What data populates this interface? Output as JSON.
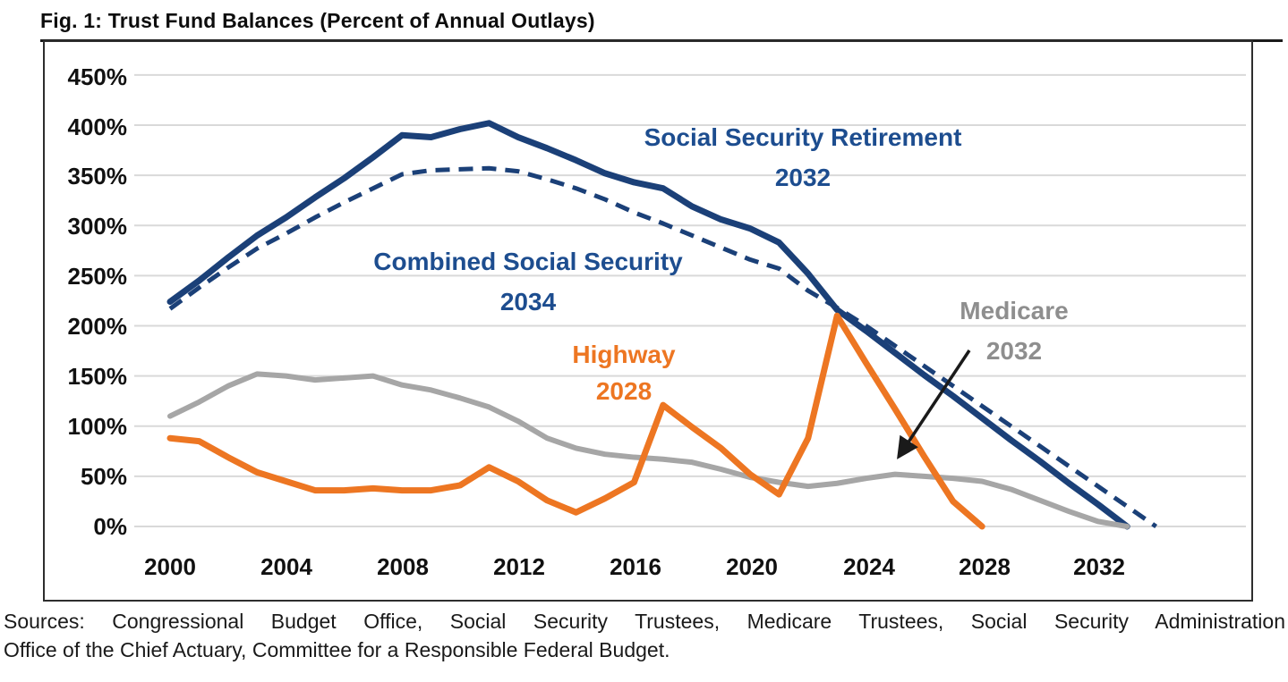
{
  "figure": {
    "title": "Fig. 1: Trust Fund Balances (Percent of Annual Outlays)",
    "sources_line1": "Sources: Congressional Budget Office, Social Security Trustees, Medicare Trustees, Social Security Administration",
    "sources_line2": "Office of the Chief Actuary, Committee for a Responsible Federal Budget."
  },
  "colors": {
    "navy": "#1b4078",
    "orange": "#ed7622",
    "gray": "#a6a6a6",
    "gridline": "#d9d9d9",
    "axis_text": "#111111",
    "arrow": "#1a1a1a"
  },
  "chart_data": {
    "type": "line",
    "title": "Trust Fund Balances (Percent of Annual Outlays)",
    "xlabel": "",
    "ylabel": "Percent of Annual Outlays",
    "ylim": [
      0,
      450
    ],
    "xlim": [
      2000,
      2034
    ],
    "grid": "horizontal",
    "legend_position": "inline-annotations",
    "y_tick_labels": [
      "450%",
      "400%",
      "350%",
      "300%",
      "250%",
      "200%",
      "150%",
      "100%",
      "50%",
      "0%"
    ],
    "y_gridline_values": [
      450,
      400,
      350,
      300,
      250,
      200,
      150,
      100,
      50,
      0
    ],
    "x_tick_labels": [
      "2000",
      "2004",
      "2008",
      "2012",
      "2016",
      "2020",
      "2024",
      "2028",
      "2032"
    ],
    "x_tick_values": [
      2000,
      2004,
      2008,
      2012,
      2016,
      2020,
      2024,
      2028,
      2032
    ],
    "series": [
      {
        "name": "Social Security Retirement",
        "insolvency_year": "2032",
        "color": "#1b4078",
        "style": "solid",
        "width": 7,
        "x": [
          2000,
          2001,
          2002,
          2003,
          2004,
          2005,
          2006,
          2007,
          2008,
          2009,
          2010,
          2011,
          2012,
          2013,
          2014,
          2015,
          2016,
          2017,
          2018,
          2019,
          2020,
          2021,
          2022,
          2023,
          2024,
          2025,
          2026,
          2027,
          2028,
          2029,
          2030,
          2031,
          2032,
          2033
        ],
        "values": [
          224,
          245,
          268,
          290,
          308,
          328,
          347,
          368,
          390,
          388,
          396,
          402,
          388,
          377,
          365,
          352,
          343,
          337,
          319,
          306,
          297,
          283,
          252,
          216,
          195,
          173,
          151,
          130,
          108,
          86,
          65,
          43,
          22,
          0
        ]
      },
      {
        "name": "Combined Social Security",
        "insolvency_year": "2034",
        "color": "#1b4078",
        "style": "dashed",
        "width": 5,
        "x": [
          2000,
          2001,
          2002,
          2003,
          2004,
          2005,
          2006,
          2007,
          2008,
          2009,
          2010,
          2011,
          2012,
          2013,
          2014,
          2015,
          2016,
          2017,
          2018,
          2019,
          2020,
          2021,
          2022,
          2023,
          2024,
          2025,
          2026,
          2027,
          2028,
          2029,
          2030,
          2031,
          2032,
          2033,
          2034
        ],
        "values": [
          217,
          238,
          258,
          277,
          292,
          308,
          323,
          337,
          351,
          355,
          356,
          357,
          354,
          346,
          337,
          326,
          313,
          302,
          290,
          278,
          266,
          257,
          235,
          218,
          200,
          180,
          160,
          140,
          120,
          100,
          80,
          60,
          40,
          20,
          0
        ]
      },
      {
        "name": "Medicare",
        "insolvency_year": "2032",
        "color": "#a6a6a6",
        "style": "solid",
        "width": 6,
        "x": [
          2000,
          2001,
          2002,
          2003,
          2004,
          2005,
          2006,
          2007,
          2008,
          2009,
          2010,
          2011,
          2012,
          2013,
          2014,
          2015,
          2016,
          2017,
          2018,
          2019,
          2020,
          2021,
          2022,
          2023,
          2024,
          2025,
          2026,
          2027,
          2028,
          2029,
          2030,
          2031,
          2032,
          2033
        ],
        "values": [
          110,
          124,
          140,
          152,
          150,
          146,
          148,
          150,
          141,
          136,
          128,
          119,
          105,
          88,
          78,
          72,
          69,
          67,
          64,
          57,
          49,
          44,
          40,
          43,
          48,
          52,
          50,
          48,
          45,
          37,
          26,
          15,
          5,
          0
        ]
      },
      {
        "name": "Highway",
        "insolvency_year": "2028",
        "color": "#ed7622",
        "style": "solid",
        "width": 7,
        "x": [
          2000,
          2001,
          2002,
          2003,
          2004,
          2005,
          2006,
          2007,
          2008,
          2009,
          2010,
          2011,
          2012,
          2013,
          2014,
          2015,
          2016,
          2017,
          2018,
          2019,
          2020,
          2021,
          2022,
          2023,
          2024,
          2025,
          2026,
          2027,
          2028
        ],
        "values": [
          88,
          85,
          69,
          54,
          45,
          36,
          36,
          38,
          36,
          36,
          41,
          59,
          45,
          26,
          14,
          28,
          44,
          121,
          99,
          78,
          52,
          32,
          88,
          210,
          163,
          117,
          70,
          25,
          0
        ]
      }
    ],
    "annotations": [
      {
        "text": "Social Security Retirement",
        "year": "2032"
      },
      {
        "text": "Combined Social Security",
        "year": "2034"
      },
      {
        "text": "Highway",
        "year": "2028"
      },
      {
        "text": "Medicare",
        "year": "2032"
      }
    ]
  }
}
